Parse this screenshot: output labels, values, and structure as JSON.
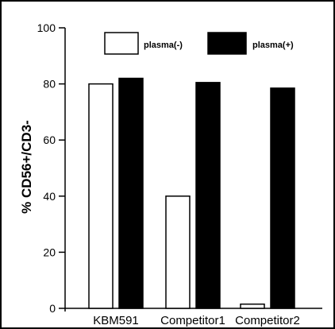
{
  "chart_data": {
    "type": "bar",
    "title": "",
    "xlabel": "",
    "ylabel": "% CD56+/CD3-",
    "ylim": [
      0,
      100
    ],
    "yticks": [
      0,
      20,
      40,
      60,
      80,
      100
    ],
    "grid": false,
    "legend_position": "top",
    "categories": [
      "KBM591",
      "Competitor1",
      "Competitor2"
    ],
    "series": [
      {
        "name": "plasma(-)",
        "values": [
          80,
          40,
          1.5
        ],
        "color": "#ffffff",
        "stroke": "#000000"
      },
      {
        "name": "plasma(+)",
        "values": [
          82,
          80.5,
          78.5
        ],
        "color": "#000000",
        "stroke": "#000000"
      }
    ]
  }
}
